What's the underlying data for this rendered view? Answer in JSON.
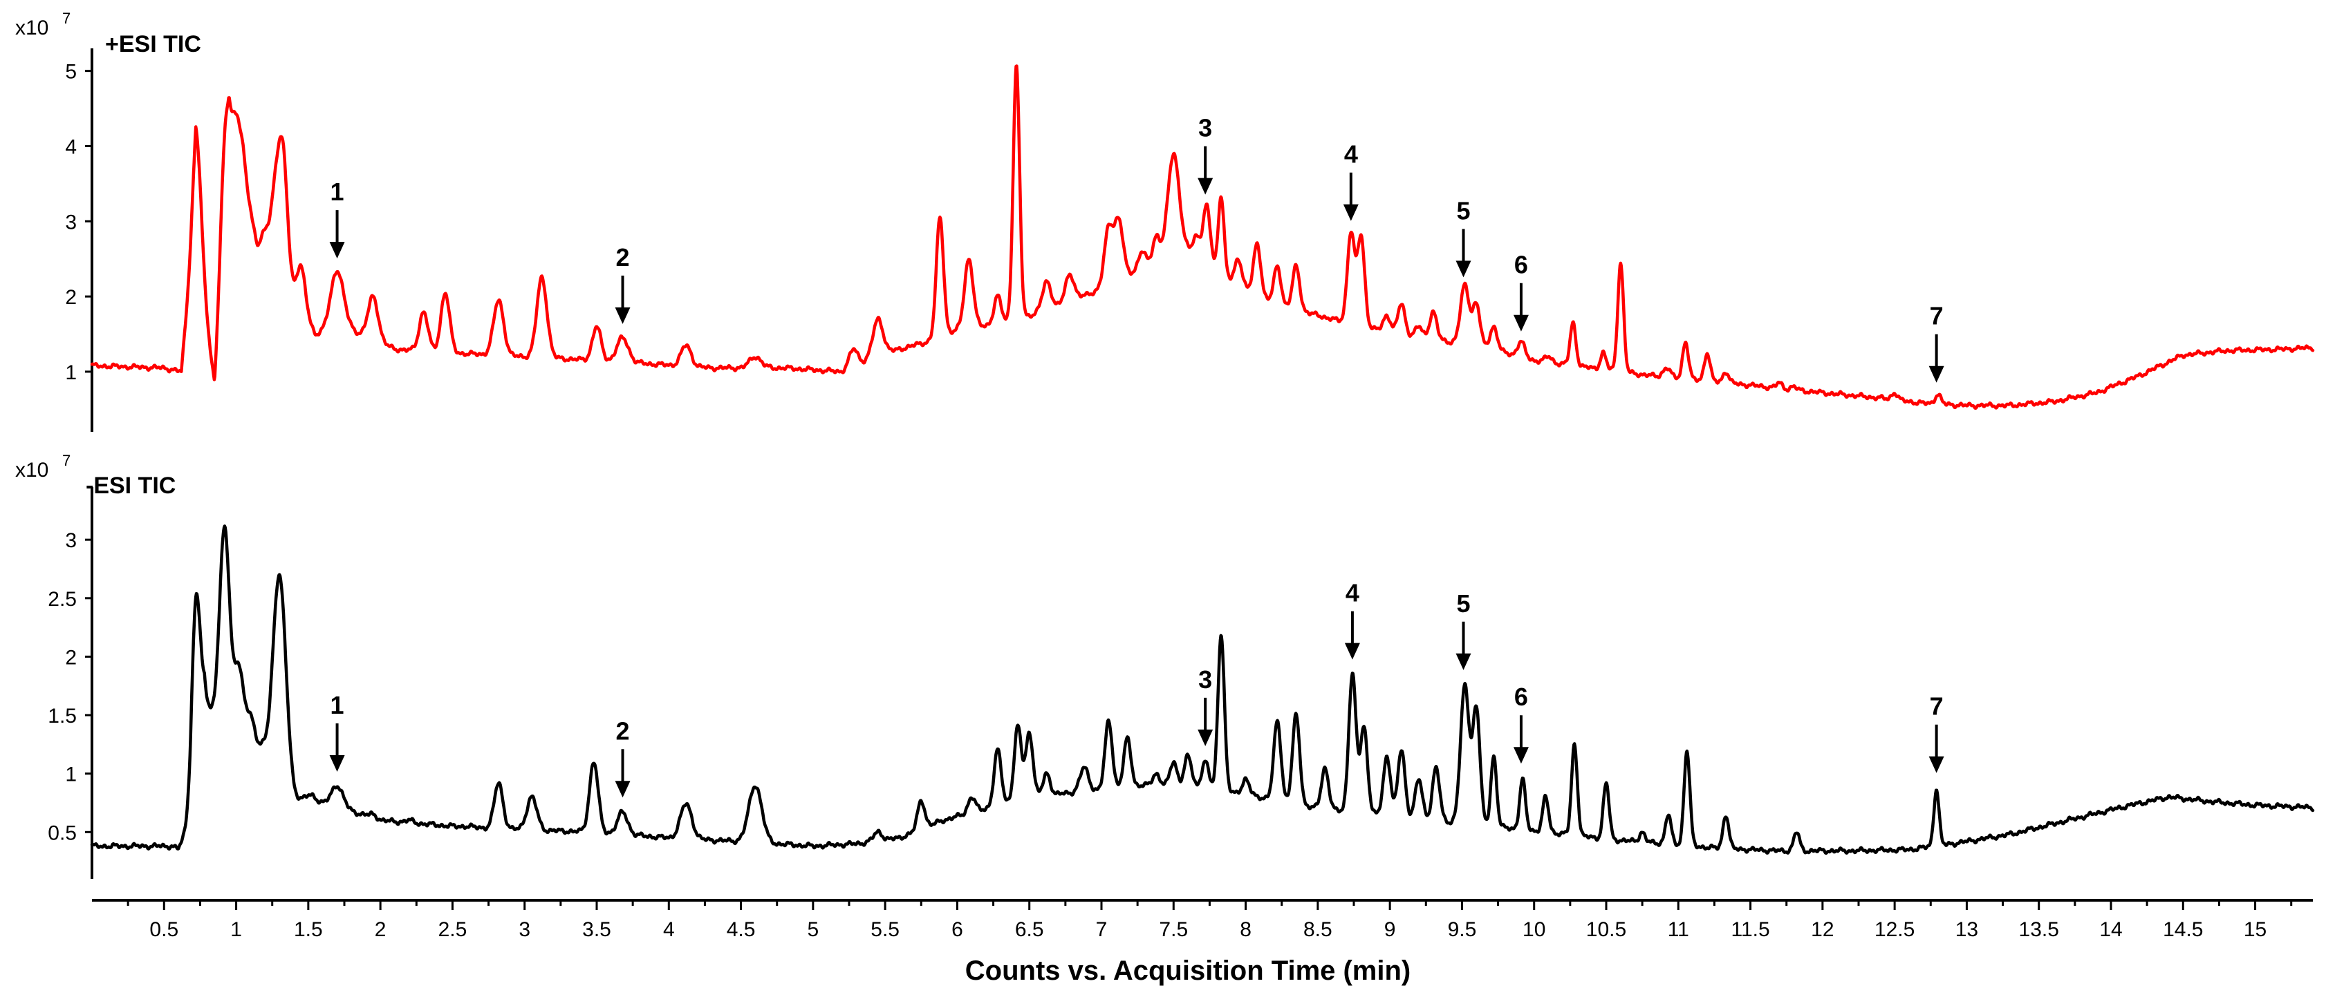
{
  "chart_data": {
    "type": "line",
    "xlabel": "Counts vs. Acquisition Time (min)",
    "xlim": [
      0,
      15.4
    ],
    "x_ticks": [
      "0.5",
      "1",
      "1.5",
      "2",
      "2.5",
      "3",
      "3.5",
      "4",
      "4.5",
      "5",
      "5.5",
      "6",
      "6.5",
      "7",
      "7.5",
      "8",
      "8.5",
      "9",
      "9.5",
      "10",
      "10.5",
      "11",
      "11.5",
      "12",
      "12.5",
      "13",
      "13.5",
      "14",
      "14.5",
      "15"
    ],
    "panels": [
      {
        "id": "pos",
        "title": "+ESI TIC",
        "exponent_base": "x10",
        "exponent_power": "7",
        "color": "#ff0000",
        "ylim": [
          0.2,
          5.3
        ],
        "y_ticks": [
          "1",
          "2",
          "3",
          "4",
          "5"
        ],
        "baseline": [
          [
            0,
            1.08
          ],
          [
            0.5,
            1.05
          ],
          [
            0.62,
            1.0
          ],
          [
            0.72,
            3.2
          ],
          [
            0.78,
            2.0
          ],
          [
            0.85,
            0.78
          ],
          [
            0.95,
            3.6
          ],
          [
            1.05,
            3.7
          ],
          [
            1.15,
            2.6
          ],
          [
            1.4,
            2.0
          ],
          [
            1.55,
            1.5
          ],
          [
            1.8,
            1.55
          ],
          [
            2.1,
            1.3
          ],
          [
            2.5,
            1.25
          ],
          [
            3.0,
            1.2
          ],
          [
            3.5,
            1.15
          ],
          [
            3.9,
            1.1
          ],
          [
            4.3,
            1.05
          ],
          [
            4.8,
            1.05
          ],
          [
            5.2,
            1.0
          ],
          [
            5.5,
            1.25
          ],
          [
            5.8,
            1.4
          ],
          [
            6.0,
            1.55
          ],
          [
            6.3,
            1.65
          ],
          [
            6.6,
            1.8
          ],
          [
            7.0,
            2.1
          ],
          [
            7.3,
            2.4
          ],
          [
            7.6,
            2.6
          ],
          [
            7.9,
            2.2
          ],
          [
            8.2,
            1.9
          ],
          [
            8.5,
            1.75
          ],
          [
            8.8,
            1.6
          ],
          [
            9.2,
            1.45
          ],
          [
            9.6,
            1.35
          ],
          [
            10.0,
            1.15
          ],
          [
            10.4,
            1.05
          ],
          [
            10.8,
            0.95
          ],
          [
            11.2,
            0.88
          ],
          [
            11.6,
            0.8
          ],
          [
            12.0,
            0.72
          ],
          [
            12.4,
            0.65
          ],
          [
            12.7,
            0.58
          ],
          [
            13.0,
            0.55
          ],
          [
            13.3,
            0.55
          ],
          [
            13.6,
            0.6
          ],
          [
            13.9,
            0.72
          ],
          [
            14.2,
            0.95
          ],
          [
            14.5,
            1.22
          ],
          [
            14.8,
            1.28
          ],
          [
            15.2,
            1.3
          ],
          [
            15.4,
            1.32
          ]
        ],
        "peaks": [
          [
            0.73,
            4.1,
            0.03
          ],
          [
            0.92,
            4.1,
            0.03
          ],
          [
            1.0,
            4.4,
            0.035
          ],
          [
            1.1,
            3.0,
            0.03
          ],
          [
            1.2,
            2.8,
            0.03
          ],
          [
            1.28,
            3.5,
            0.035
          ],
          [
            1.33,
            3.5,
            0.03
          ],
          [
            1.45,
            2.4,
            0.03
          ],
          [
            1.7,
            2.35,
            0.045
          ],
          [
            1.95,
            2.0,
            0.035
          ],
          [
            2.3,
            1.8,
            0.03
          ],
          [
            2.45,
            2.05,
            0.03
          ],
          [
            2.82,
            1.95,
            0.035
          ],
          [
            3.12,
            2.25,
            0.035
          ],
          [
            3.5,
            1.6,
            0.03
          ],
          [
            3.68,
            1.45,
            0.04
          ],
          [
            4.12,
            1.35,
            0.035
          ],
          [
            4.6,
            1.2,
            0.04
          ],
          [
            5.28,
            1.3,
            0.03
          ],
          [
            5.45,
            1.7,
            0.035
          ],
          [
            5.88,
            3.05,
            0.025
          ],
          [
            6.08,
            2.5,
            0.03
          ],
          [
            6.28,
            2.0,
            0.025
          ],
          [
            6.41,
            5.05,
            0.022
          ],
          [
            6.62,
            2.2,
            0.03
          ],
          [
            6.78,
            2.3,
            0.03
          ],
          [
            7.05,
            2.9,
            0.03
          ],
          [
            7.12,
            3.0,
            0.03
          ],
          [
            7.28,
            2.6,
            0.025
          ],
          [
            7.38,
            2.8,
            0.025
          ],
          [
            7.5,
            3.9,
            0.04
          ],
          [
            7.66,
            2.8,
            0.025
          ],
          [
            7.73,
            3.2,
            0.025
          ],
          [
            7.83,
            3.35,
            0.02
          ],
          [
            7.95,
            2.5,
            0.025
          ],
          [
            8.08,
            2.7,
            0.025
          ],
          [
            8.22,
            2.4,
            0.025
          ],
          [
            8.35,
            2.4,
            0.025
          ],
          [
            8.5,
            1.7,
            0.03
          ],
          [
            8.73,
            2.85,
            0.025
          ],
          [
            8.8,
            2.8,
            0.025
          ],
          [
            8.98,
            1.75,
            0.025
          ],
          [
            9.08,
            1.9,
            0.025
          ],
          [
            9.2,
            1.6,
            0.025
          ],
          [
            9.3,
            1.8,
            0.025
          ],
          [
            9.52,
            2.15,
            0.03
          ],
          [
            9.6,
            1.9,
            0.025
          ],
          [
            9.72,
            1.6,
            0.025
          ],
          [
            9.91,
            1.4,
            0.025
          ],
          [
            10.1,
            1.2,
            0.025
          ],
          [
            10.27,
            1.65,
            0.02
          ],
          [
            10.48,
            1.25,
            0.02
          ],
          [
            10.6,
            2.45,
            0.02
          ],
          [
            10.92,
            1.05,
            0.025
          ],
          [
            11.05,
            1.4,
            0.02
          ],
          [
            11.2,
            1.25,
            0.02
          ],
          [
            11.33,
            1.0,
            0.02
          ],
          [
            11.7,
            0.85,
            0.02
          ],
          [
            11.8,
            0.8,
            0.02
          ],
          [
            12.5,
            0.72,
            0.02
          ],
          [
            12.8,
            0.7,
            0.02
          ]
        ],
        "annotations": [
          {
            "label": "1",
            "x": 1.7,
            "y": 2.45
          },
          {
            "label": "2",
            "x": 3.68,
            "y": 1.58
          },
          {
            "label": "3",
            "x": 7.72,
            "y": 3.3
          },
          {
            "label": "4",
            "x": 8.73,
            "y": 2.95
          },
          {
            "label": "5",
            "x": 9.51,
            "y": 2.2
          },
          {
            "label": "6",
            "x": 9.91,
            "y": 1.48
          },
          {
            "label": "7",
            "x": 12.79,
            "y": 0.8
          }
        ]
      },
      {
        "id": "neg",
        "title": "-ESI TIC",
        "exponent_base": "x10",
        "exponent_power": "7",
        "color": "#000000",
        "ylim": [
          0.1,
          3.45
        ],
        "y_ticks": [
          "0.5",
          "1",
          "1.5",
          "2",
          "2.5",
          "3"
        ],
        "baseline": [
          [
            0,
            0.38
          ],
          [
            0.55,
            0.38
          ],
          [
            0.6,
            0.36
          ],
          [
            0.68,
            0.55
          ],
          [
            0.78,
            1.6
          ],
          [
            0.85,
            1.45
          ],
          [
            1.0,
            1.4
          ],
          [
            1.1,
            1.2
          ],
          [
            1.25,
            1.0
          ],
          [
            1.4,
            0.78
          ],
          [
            1.7,
            0.72
          ],
          [
            2.0,
            0.6
          ],
          [
            2.5,
            0.55
          ],
          [
            3.0,
            0.52
          ],
          [
            3.5,
            0.5
          ],
          [
            4.0,
            0.45
          ],
          [
            4.5,
            0.42
          ],
          [
            5.0,
            0.38
          ],
          [
            5.3,
            0.4
          ],
          [
            5.6,
            0.45
          ],
          [
            5.9,
            0.6
          ],
          [
            6.2,
            0.7
          ],
          [
            6.5,
            0.8
          ],
          [
            6.9,
            0.85
          ],
          [
            7.3,
            0.9
          ],
          [
            7.7,
            0.88
          ],
          [
            8.1,
            0.8
          ],
          [
            8.5,
            0.7
          ],
          [
            8.9,
            0.65
          ],
          [
            9.3,
            0.6
          ],
          [
            9.7,
            0.55
          ],
          [
            10.1,
            0.5
          ],
          [
            10.5,
            0.44
          ],
          [
            10.9,
            0.4
          ],
          [
            11.3,
            0.36
          ],
          [
            11.7,
            0.34
          ],
          [
            12.2,
            0.34
          ],
          [
            12.6,
            0.35
          ],
          [
            12.9,
            0.4
          ],
          [
            13.3,
            0.48
          ],
          [
            13.7,
            0.6
          ],
          [
            14.1,
            0.72
          ],
          [
            14.4,
            0.8
          ],
          [
            14.7,
            0.76
          ],
          [
            15.0,
            0.73
          ],
          [
            15.4,
            0.71
          ]
        ],
        "peaks": [
          [
            0.72,
            2.5,
            0.03
          ],
          [
            0.8,
            1.6,
            0.03
          ],
          [
            0.92,
            3.1,
            0.035
          ],
          [
            1.02,
            1.9,
            0.03
          ],
          [
            1.1,
            1.5,
            0.03
          ],
          [
            1.18,
            1.2,
            0.03
          ],
          [
            1.3,
            2.7,
            0.045
          ],
          [
            1.52,
            0.82,
            0.035
          ],
          [
            1.7,
            0.9,
            0.04
          ],
          [
            1.95,
            0.65,
            0.03
          ],
          [
            2.2,
            0.6,
            0.03
          ],
          [
            2.6,
            0.55,
            0.03
          ],
          [
            2.82,
            0.92,
            0.03
          ],
          [
            3.05,
            0.8,
            0.035
          ],
          [
            3.48,
            1.1,
            0.03
          ],
          [
            3.68,
            0.67,
            0.035
          ],
          [
            4.12,
            0.74,
            0.04
          ],
          [
            4.6,
            0.9,
            0.045
          ],
          [
            5.45,
            0.5,
            0.03
          ],
          [
            5.75,
            0.77,
            0.025
          ],
          [
            6.1,
            0.8,
            0.025
          ],
          [
            6.28,
            1.2,
            0.025
          ],
          [
            6.42,
            1.4,
            0.025
          ],
          [
            6.5,
            1.35,
            0.025
          ],
          [
            6.62,
            1.0,
            0.025
          ],
          [
            6.88,
            1.05,
            0.03
          ],
          [
            7.05,
            1.45,
            0.025
          ],
          [
            7.18,
            1.3,
            0.025
          ],
          [
            7.38,
            1.0,
            0.025
          ],
          [
            7.5,
            1.1,
            0.025
          ],
          [
            7.6,
            1.15,
            0.025
          ],
          [
            7.72,
            1.1,
            0.025
          ],
          [
            7.83,
            2.2,
            0.022
          ],
          [
            8.0,
            0.95,
            0.025
          ],
          [
            8.22,
            1.45,
            0.025
          ],
          [
            8.35,
            1.5,
            0.025
          ],
          [
            8.55,
            1.05,
            0.025
          ],
          [
            8.74,
            1.85,
            0.025
          ],
          [
            8.82,
            1.4,
            0.025
          ],
          [
            8.98,
            1.15,
            0.025
          ],
          [
            9.08,
            1.2,
            0.025
          ],
          [
            9.2,
            0.95,
            0.025
          ],
          [
            9.32,
            1.05,
            0.025
          ],
          [
            9.52,
            1.75,
            0.03
          ],
          [
            9.6,
            1.55,
            0.025
          ],
          [
            9.72,
            1.15,
            0.02
          ],
          [
            9.92,
            0.95,
            0.02
          ],
          [
            10.08,
            0.8,
            0.02
          ],
          [
            10.28,
            1.25,
            0.02
          ],
          [
            10.5,
            0.92,
            0.02
          ],
          [
            10.75,
            0.5,
            0.02
          ],
          [
            10.93,
            0.65,
            0.02
          ],
          [
            11.06,
            1.2,
            0.02
          ],
          [
            11.33,
            0.65,
            0.02
          ],
          [
            11.82,
            0.5,
            0.02
          ],
          [
            12.79,
            0.87,
            0.018
          ]
        ],
        "annotations": [
          {
            "label": "1",
            "x": 1.7,
            "y": 0.98
          },
          {
            "label": "2",
            "x": 3.68,
            "y": 0.76
          },
          {
            "label": "3",
            "x": 7.72,
            "y": 1.2
          },
          {
            "label": "4",
            "x": 8.74,
            "y": 1.94
          },
          {
            "label": "5",
            "x": 9.51,
            "y": 1.85
          },
          {
            "label": "6",
            "x": 9.91,
            "y": 1.05
          },
          {
            "label": "7",
            "x": 12.79,
            "y": 0.97
          }
        ]
      }
    ]
  }
}
